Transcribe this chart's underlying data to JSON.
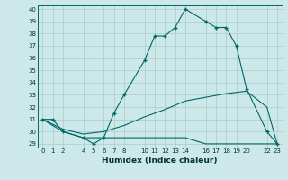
{
  "xlabel": "Humidex (Indice chaleur)",
  "bg_color": "#cce8e8",
  "grid_color": "#aacccc",
  "line_color": "#006666",
  "ylim_min": 29,
  "ylim_max": 40,
  "xlim_min": -0.5,
  "xlim_max": 23.5,
  "yticks": [
    29,
    30,
    31,
    32,
    33,
    34,
    35,
    36,
    37,
    38,
    39,
    40
  ],
  "xticks": [
    0,
    1,
    2,
    4,
    5,
    6,
    7,
    8,
    10,
    11,
    12,
    13,
    14,
    16,
    17,
    18,
    19,
    20,
    22,
    23
  ],
  "series": [
    {
      "x": [
        0,
        1,
        2,
        4,
        5,
        6,
        7,
        8,
        10,
        11,
        12,
        13,
        14,
        16,
        17,
        18,
        19,
        20,
        22,
        23
      ],
      "y": [
        31,
        31,
        30,
        29.5,
        29,
        29.5,
        31.5,
        33,
        35.8,
        37.8,
        37.8,
        38.5,
        40,
        39,
        38.5,
        38.5,
        37,
        33.5,
        30,
        29
      ],
      "marker": "+"
    },
    {
      "x": [
        0,
        2,
        4,
        5,
        6,
        10,
        14,
        16,
        20,
        22,
        23
      ],
      "y": [
        31,
        30,
        29.5,
        29.5,
        29.5,
        29.5,
        29.5,
        29,
        29,
        29,
        29
      ],
      "marker": null
    },
    {
      "x": [
        0,
        2,
        4,
        6,
        8,
        10,
        12,
        14,
        16,
        18,
        20,
        22,
        23
      ],
      "y": [
        31,
        30.2,
        29.8,
        30.0,
        30.5,
        31.2,
        31.8,
        32.5,
        32.8,
        33.1,
        33.3,
        32.0,
        29.0
      ],
      "marker": null
    }
  ]
}
